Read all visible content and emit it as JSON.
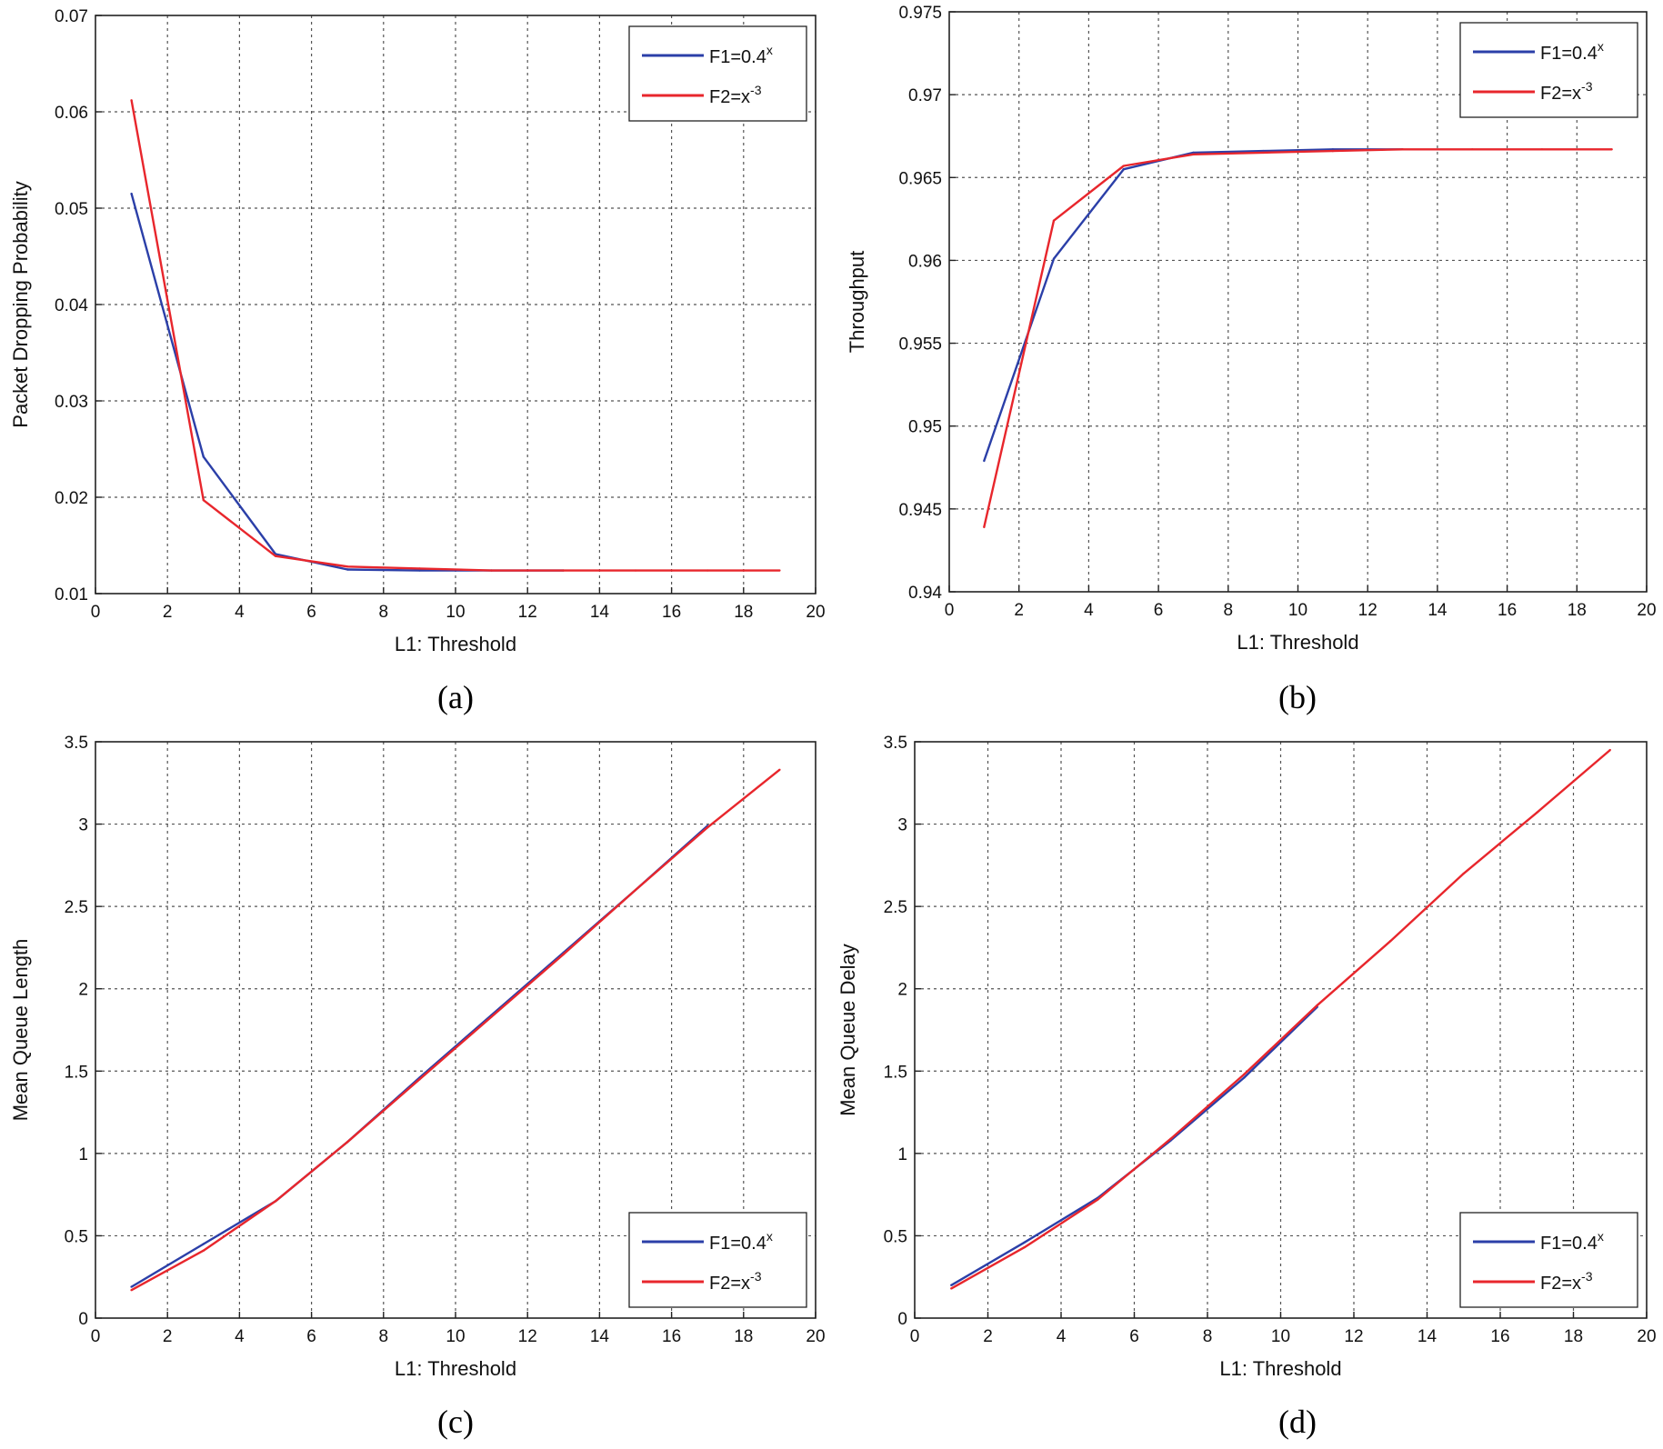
{
  "chart_data": [
    {
      "id": "a",
      "type": "line",
      "caption": "(a)",
      "xlabel": "L1: Threshold",
      "ylabel": "Packet Dropping Probability",
      "xlim": [
        0,
        20
      ],
      "ylim": [
        0.01,
        0.07
      ],
      "xticks": [
        "0",
        "2",
        "4",
        "6",
        "8",
        "10",
        "12",
        "14",
        "16",
        "18",
        "20"
      ],
      "yticks": [
        "0.01",
        "0.02",
        "0.03",
        "0.04",
        "0.05",
        "0.06",
        "0.07"
      ],
      "grid": true,
      "legend_position": "top-right",
      "series": [
        {
          "name": "F1=0.4",
          "sup": "x",
          "color": "#2b3fa8",
          "x": [
            1,
            3,
            5,
            7,
            9,
            11,
            13
          ],
          "y": [
            0.0515,
            0.0242,
            0.0141,
            0.0125,
            0.0124,
            0.0124,
            0.0124
          ]
        },
        {
          "name": "F2=x",
          "sup": "-3",
          "color": "#e8262c",
          "x": [
            1,
            3,
            5,
            7,
            9,
            11,
            13,
            15,
            17,
            19
          ],
          "y": [
            0.0612,
            0.0197,
            0.0139,
            0.0128,
            0.0126,
            0.0124,
            0.0124,
            0.0124,
            0.0124,
            0.0124
          ]
        }
      ]
    },
    {
      "id": "b",
      "type": "line",
      "caption": "(b)",
      "xlabel": "L1: Threshold",
      "ylabel": "Throughput",
      "xlim": [
        0,
        20
      ],
      "ylim": [
        0.94,
        0.975
      ],
      "xticks": [
        "0",
        "2",
        "4",
        "6",
        "8",
        "10",
        "12",
        "14",
        "16",
        "18",
        "20"
      ],
      "yticks": [
        "0.94",
        "0.945",
        "0.95",
        "0.955",
        "0.96",
        "0.965",
        "0.97",
        "0.975"
      ],
      "grid": true,
      "legend_position": "top-right",
      "series": [
        {
          "name": "F1=0.4",
          "sup": "x",
          "color": "#2b3fa8",
          "x": [
            1,
            3,
            5,
            7,
            9,
            11,
            13
          ],
          "y": [
            0.9479,
            0.9601,
            0.9655,
            0.9665,
            0.9666,
            0.9667,
            0.9667
          ]
        },
        {
          "name": "F2=x",
          "sup": "-3",
          "color": "#e8262c",
          "x": [
            1,
            3,
            5,
            7,
            9,
            11,
            13,
            15,
            17,
            19
          ],
          "y": [
            0.9439,
            0.9624,
            0.9657,
            0.9664,
            0.9665,
            0.9666,
            0.9667,
            0.9667,
            0.9667,
            0.9667
          ]
        }
      ]
    },
    {
      "id": "c",
      "type": "line",
      "caption": "(c)",
      "xlabel": "L1: Threshold",
      "ylabel": "Mean Queue Length",
      "xlim": [
        0,
        20
      ],
      "ylim": [
        0,
        3.5
      ],
      "xticks": [
        "0",
        "2",
        "4",
        "6",
        "8",
        "10",
        "12",
        "14",
        "16",
        "18",
        "20"
      ],
      "yticks": [
        "0",
        "0.5",
        "1",
        "1.5",
        "2",
        "2.5",
        "3",
        "3.5"
      ],
      "grid": true,
      "legend_position": "bottom-right",
      "series": [
        {
          "name": "F1=0.4",
          "sup": "x",
          "color": "#2b3fa8",
          "x": [
            1,
            3,
            5,
            7,
            9,
            11,
            13,
            15,
            17
          ],
          "y": [
            0.19,
            0.45,
            0.71,
            1.07,
            1.46,
            1.84,
            2.22,
            2.6,
            2.99
          ]
        },
        {
          "name": "F2=x",
          "sup": "-3",
          "color": "#e8262c",
          "x": [
            1,
            3,
            5,
            7,
            9,
            11,
            13,
            15,
            17,
            19
          ],
          "y": [
            0.17,
            0.41,
            0.71,
            1.07,
            1.45,
            1.83,
            2.21,
            2.6,
            2.98,
            3.33
          ]
        }
      ]
    },
    {
      "id": "d",
      "type": "line",
      "caption": "(d)",
      "xlabel": "L1: Threshold",
      "ylabel": "Mean Queue Delay",
      "xlim": [
        0,
        20
      ],
      "ylim": [
        0,
        3.5
      ],
      "xticks": [
        "0",
        "2",
        "4",
        "6",
        "8",
        "10",
        "12",
        "14",
        "16",
        "18",
        "20"
      ],
      "yticks": [
        "0",
        "0.5",
        "1",
        "1.5",
        "2",
        "2.5",
        "3",
        "3.5"
      ],
      "grid": true,
      "legend_position": "bottom-right",
      "series": [
        {
          "name": "F1=0.4",
          "sup": "x",
          "color": "#2b3fa8",
          "x": [
            1,
            3,
            5,
            7,
            9,
            11
          ],
          "y": [
            0.2,
            0.46,
            0.73,
            1.08,
            1.46,
            1.89
          ]
        },
        {
          "name": "F2=x",
          "sup": "-3",
          "color": "#e8262c",
          "x": [
            1,
            3,
            5,
            7,
            9,
            11,
            13,
            15,
            17,
            19
          ],
          "y": [
            0.18,
            0.43,
            0.72,
            1.09,
            1.48,
            1.9,
            2.29,
            2.7,
            3.07,
            3.45
          ]
        }
      ]
    }
  ]
}
